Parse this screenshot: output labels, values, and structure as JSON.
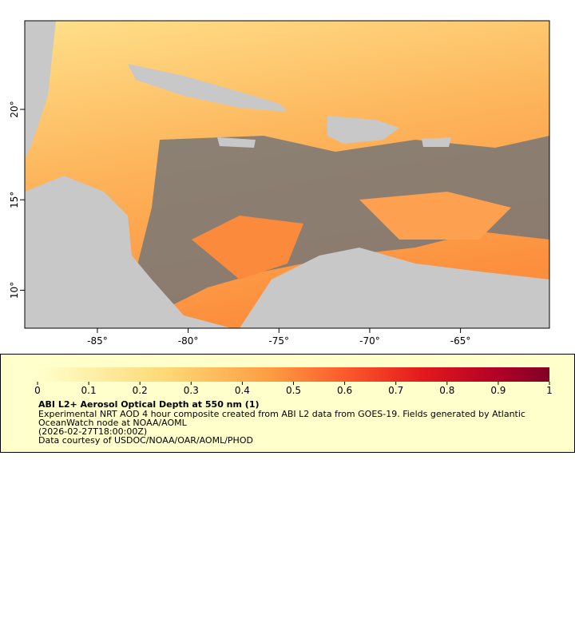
{
  "map": {
    "xlim": [
      -89,
      -60.1
    ],
    "ylim": [
      7.9,
      24.9
    ],
    "lon_ticks": [
      {
        "value": -85,
        "label": "-85°"
      },
      {
        "value": -80,
        "label": "-80°"
      },
      {
        "value": -75,
        "label": "-75°"
      },
      {
        "value": -70,
        "label": "-70°"
      },
      {
        "value": -65,
        "label": "-65°"
      }
    ],
    "lat_ticks": [
      {
        "value": 10,
        "label": "10°"
      },
      {
        "value": 15,
        "label": "15°"
      },
      {
        "value": 20,
        "label": "20°"
      }
    ]
  },
  "colorbar": {
    "lim": [
      0,
      1
    ],
    "ticks": [
      0,
      0.1,
      0.2,
      0.3,
      0.4,
      0.5,
      0.6,
      0.7,
      0.8,
      0.9,
      1
    ],
    "title": "ABI L2+ Aerosol Optical Depth at 550 nm (1)",
    "lines": [
      "Experimental NRT AOD 4 hour composite created from ABI L2 data from GOES-19. Fields generated by Atlantic",
      "OceanWatch node at NOAA/AOML",
      "(2026-02-27T18:00:00Z)",
      "Data courtesy of USDOC/NOAA/OAR/AOML/PHOD"
    ]
  }
}
